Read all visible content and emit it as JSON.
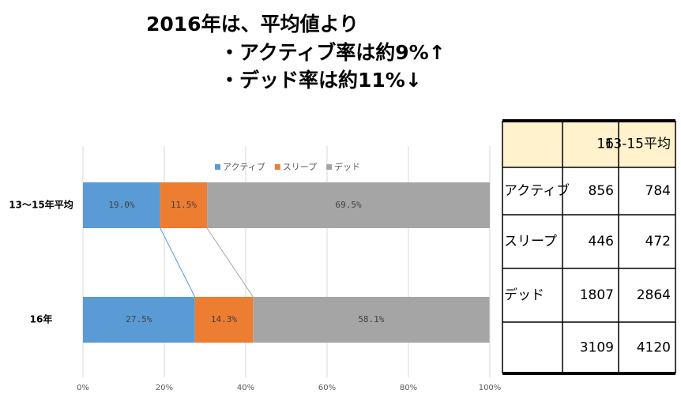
{
  "header": {
    "lines": [
      "2016年は、平均値より",
      "・アクティブ率は約9%↑",
      "・デッド率は約11%↓"
    ]
  },
  "chart_data": {
    "type": "stacked-bar-horizontal",
    "categories": [
      "13〜15年平均",
      "16年"
    ],
    "series": [
      {
        "name": "アクティブ",
        "color": "#5b9bd5",
        "values": [
          19.0,
          27.5
        ],
        "value_labels": [
          "19.0%",
          "27.5%"
        ]
      },
      {
        "name": "スリープ",
        "color": "#ed7d31",
        "values": [
          11.5,
          14.3
        ],
        "value_labels": [
          "11.5%",
          "14.3%"
        ]
      },
      {
        "name": "デッド",
        "color": "#a5a5a5",
        "values": [
          69.5,
          58.1
        ],
        "value_labels": [
          "69.5%",
          "58.1%"
        ]
      }
    ],
    "xlim": [
      0,
      100
    ],
    "xticks": [
      {
        "value": 0,
        "label": "0%"
      },
      {
        "value": 20,
        "label": "20%"
      },
      {
        "value": 40,
        "label": "40%"
      },
      {
        "value": 60,
        "label": "60%"
      },
      {
        "value": 80,
        "label": "80%"
      },
      {
        "value": 100,
        "label": "100%"
      }
    ],
    "grid": true,
    "legend": "top"
  },
  "table": {
    "columns": [
      "16",
      "13-15平均"
    ],
    "rows": [
      {
        "label": "アクティブ",
        "values": [
          856,
          784
        ]
      },
      {
        "label": "スリープ",
        "values": [
          446,
          472
        ]
      },
      {
        "label": "デッド",
        "values": [
          1807,
          2864
        ]
      },
      {
        "label": null,
        "values": [
          3109,
          4120
        ]
      }
    ]
  }
}
